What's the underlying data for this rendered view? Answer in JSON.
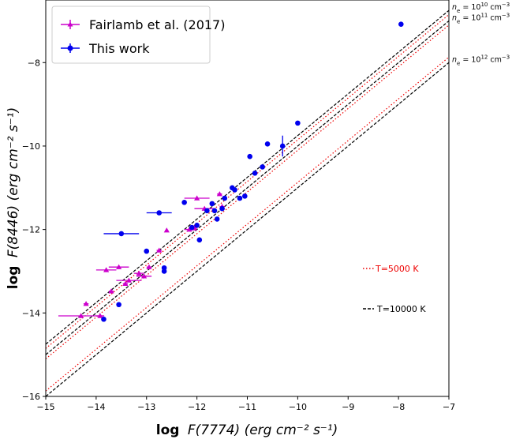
{
  "chart_data": {
    "type": "scatter",
    "xlabel_main": "log",
    "xlabel_math": "F(7774) (erg cm⁻² s⁻¹)",
    "ylabel_main": "log",
    "ylabel_math": "F(8446) (erg cm⁻² s⁻¹)",
    "xlim": [
      -15,
      -7
    ],
    "ylim": [
      -16,
      -6.5
    ],
    "xticks": [
      -15,
      -14,
      -13,
      -12,
      -11,
      -10,
      -9,
      -8,
      -7
    ],
    "yticks": [
      -16,
      -14,
      -12,
      -10,
      -8
    ],
    "legend_position": "upper-left",
    "colors": {
      "fairlamb": "#cc00cc",
      "this_work": "#0000ee",
      "temp_5000": "#ee0000",
      "temp_10000": "#000000"
    },
    "series": [
      {
        "name": "Fairlamb et al. (2017)",
        "marker": "triangle",
        "points": [
          {
            "x": -14.3,
            "y": -14.07,
            "xerr": 0.45
          },
          {
            "x": -14.2,
            "y": -13.78,
            "xerr": 0.05
          },
          {
            "x": -13.92,
            "y": -14.07,
            "xerr": 0.08
          },
          {
            "x": -13.8,
            "y": -12.97,
            "xerr": 0.2
          },
          {
            "x": -13.7,
            "y": -13.48,
            "xerr": 0.05
          },
          {
            "x": -13.55,
            "y": -12.9,
            "xerr": 0.2
          },
          {
            "x": -13.42,
            "y": -13.3,
            "xerr": 0.05
          },
          {
            "x": -13.35,
            "y": -13.22,
            "xerr": 0.25
          },
          {
            "x": -13.15,
            "y": -13.05,
            "xerr": 0.1
          },
          {
            "x": -13.05,
            "y": -13.12,
            "xerr": 0.15
          },
          {
            "x": -12.95,
            "y": -12.9,
            "xerr": 0.05
          },
          {
            "x": -12.75,
            "y": -12.5,
            "xerr": 0.05
          },
          {
            "x": -12.6,
            "y": -12.02,
            "xerr": 0.03
          },
          {
            "x": -12.15,
            "y": -12.0,
            "xerr": 0.1
          },
          {
            "x": -12.05,
            "y": -11.97,
            "xerr": 0.05
          },
          {
            "x": -12.0,
            "y": -11.25,
            "xerr": 0.25
          },
          {
            "x": -11.85,
            "y": -11.5,
            "xerr": 0.2
          },
          {
            "x": -11.55,
            "y": -11.15,
            "xerr": 0.05
          },
          {
            "x": -11.5,
            "y": -11.45,
            "xerr": 0.05
          }
        ]
      },
      {
        "name": "This work",
        "marker": "circle",
        "points": [
          {
            "x": -13.85,
            "y": -14.15
          },
          {
            "x": -13.55,
            "y": -13.8
          },
          {
            "x": -13.5,
            "y": -12.1,
            "xerr": 0.35
          },
          {
            "x": -13.0,
            "y": -12.52
          },
          {
            "x": -12.75,
            "y": -11.6,
            "xerr": 0.25
          },
          {
            "x": -12.65,
            "y": -13.0
          },
          {
            "x": -12.65,
            "y": -12.92
          },
          {
            "x": -12.25,
            "y": -11.35
          },
          {
            "x": -12.1,
            "y": -11.95
          },
          {
            "x": -12.0,
            "y": -11.9
          },
          {
            "x": -11.95,
            "y": -12.25
          },
          {
            "x": -11.8,
            "y": -11.55
          },
          {
            "x": -11.7,
            "y": -11.38
          },
          {
            "x": -11.65,
            "y": -11.55
          },
          {
            "x": -11.6,
            "y": -11.75
          },
          {
            "x": -11.5,
            "y": -11.5
          },
          {
            "x": -11.45,
            "y": -11.25
          },
          {
            "x": -11.3,
            "y": -11.0
          },
          {
            "x": -11.25,
            "y": -11.05
          },
          {
            "x": -11.15,
            "y": -11.25
          },
          {
            "x": -11.05,
            "y": -11.2
          },
          {
            "x": -10.95,
            "y": -10.25
          },
          {
            "x": -10.85,
            "y": -10.65
          },
          {
            "x": -10.7,
            "y": -10.5
          },
          {
            "x": -10.6,
            "y": -9.95
          },
          {
            "x": -10.3,
            "y": -10.0,
            "yerr": 0.25
          },
          {
            "x": -10.0,
            "y": -9.45
          },
          {
            "x": -7.95,
            "y": -7.08
          }
        ]
      }
    ],
    "reference_lines": [
      {
        "label": "n_e = 10^10",
        "label_parts": [
          "n",
          "e",
          " = 10",
          "10",
          " cm",
          "−3"
        ],
        "temperature": "10000 K",
        "intercept": 0.25
      },
      {
        "label": "n_e = 10^10",
        "temperature": "5000 K",
        "intercept": 0.15
      },
      {
        "label": "n_e = 10^11",
        "label_parts": [
          "n",
          "e",
          " = 10",
          "11",
          " cm",
          "−3"
        ],
        "temperature": "10000 K",
        "intercept": 0.0
      },
      {
        "label": "n_e = 10^11",
        "temperature": "5000 K",
        "intercept": -0.1
      },
      {
        "label": "n_e = 10^12",
        "temperature": "5000 K",
        "intercept": -0.87
      },
      {
        "label": "n_e = 10^12",
        "label_parts": [
          "n",
          "e",
          " = 10",
          "12",
          " cm",
          "−3"
        ],
        "temperature": "10000 K",
        "intercept": -1.0
      }
    ],
    "line_slope": 1.0,
    "annotations": [
      {
        "text": "T=5000 K",
        "style": "dotted",
        "color": "#ee0000"
      },
      {
        "text": "T=10000 K",
        "style": "dashed",
        "color": "#000000"
      }
    ]
  }
}
